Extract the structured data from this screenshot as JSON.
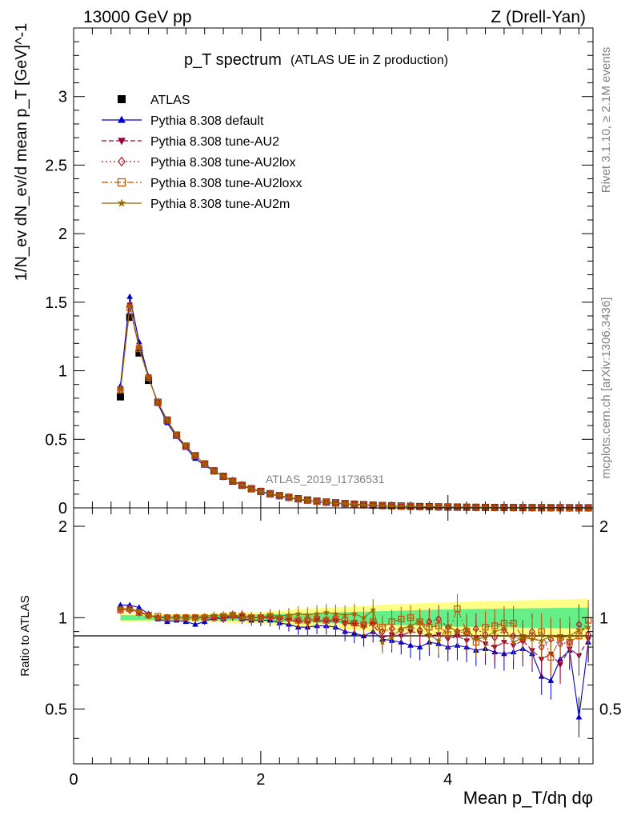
{
  "header": {
    "left": "13000 GeV pp",
    "right": "Z (Drell-Yan)"
  },
  "side_labels": {
    "rivet": "Rivet 3.1.10, ≥ 2.1M events",
    "mcplots": "mcplots.cern.ch [arXiv:1306.3436]"
  },
  "chart_data": [
    {
      "type": "line",
      "title": "p_T spectrum",
      "subtitle": "(ATLAS UE in Z production)",
      "ylabel": "1/N_ev dN_ev/d mean p_T [GeV]^-1",
      "analysis_tag": "ATLAS_2019_I1736531",
      "xlim": [
        0,
        5.55
      ],
      "ylim": [
        0,
        3.5
      ],
      "yticks": [
        "0",
        "0.5",
        "1",
        "1.5",
        "2",
        "2.5",
        "3"
      ],
      "x": [
        0.5,
        0.6,
        0.7,
        0.8,
        0.9,
        1.0,
        1.1,
        1.2,
        1.3,
        1.4,
        1.5,
        1.6,
        1.7,
        1.8,
        1.9,
        2.0,
        2.1,
        2.2,
        2.3,
        2.4,
        2.5,
        2.6,
        2.7,
        2.8,
        2.9,
        3.0,
        3.1,
        3.2,
        3.3,
        3.4,
        3.5,
        3.6,
        3.7,
        3.8,
        3.9,
        4.0,
        4.1,
        4.2,
        4.3,
        4.4,
        4.5,
        4.6,
        4.7,
        4.8,
        4.9,
        5.0,
        5.1,
        5.2,
        5.3,
        5.4,
        5.5
      ],
      "legend_position": "top-left",
      "series": [
        {
          "name": "ATLAS",
          "color": "#000000",
          "marker": "square",
          "dash": "none",
          "values": [
            0.81,
            1.39,
            1.13,
            0.93,
            0.77,
            0.64,
            0.53,
            0.45,
            0.38,
            0.32,
            0.27,
            0.23,
            0.195,
            0.165,
            0.14,
            0.12,
            0.103,
            0.089,
            0.077,
            0.066,
            0.057,
            0.049,
            0.042,
            0.036,
            0.031,
            0.027,
            0.023,
            0.02,
            0.017,
            0.015,
            0.013,
            0.011,
            0.0095,
            0.0082,
            0.0071,
            0.0061,
            0.0053,
            0.0046,
            0.004,
            0.0034,
            0.003,
            0.0026,
            0.0022,
            0.0019,
            0.0017,
            0.0014,
            0.0012,
            0.0011,
            0.0009,
            0.0008,
            0.0007
          ]
        },
        {
          "name": "Pythia 8.308 default",
          "color": "#0000cc",
          "marker": "triangle-up",
          "dash": "none",
          "values": [
            0.89,
            1.54,
            1.21,
            0.96,
            0.76,
            0.62,
            0.52,
            0.44,
            0.36,
            0.31,
            0.27,
            0.23,
            0.196,
            0.163,
            0.138,
            0.117,
            0.101,
            0.085,
            0.073,
            0.062,
            0.053,
            0.046,
            0.039,
            0.033,
            0.028,
            0.024,
            0.02,
            0.018,
            0.015,
            0.013,
            0.011,
            0.009,
            0.0078,
            0.0068,
            0.0058,
            0.0049,
            0.0043,
            0.0037,
            0.0031,
            0.0027,
            0.0023,
            0.002,
            0.0017,
            0.0015,
            0.0013,
            0.0011,
            0.0009,
            0.0008,
            0.0007,
            0.0006,
            0.0005
          ]
        },
        {
          "name": "Pythia 8.308 tune-AU2",
          "color": "#990033",
          "marker": "triangle-down",
          "dash": "6,3",
          "values": [
            0.87,
            1.48,
            1.17,
            0.95,
            0.77,
            0.64,
            0.53,
            0.45,
            0.38,
            0.32,
            0.27,
            0.23,
            0.198,
            0.166,
            0.14,
            0.12,
            0.103,
            0.088,
            0.075,
            0.064,
            0.055,
            0.048,
            0.041,
            0.035,
            0.03,
            0.026,
            0.022,
            0.019,
            0.016,
            0.014,
            0.012,
            0.01,
            0.0085,
            0.0074,
            0.0063,
            0.0054,
            0.0047,
            0.004,
            0.0035,
            0.003,
            0.0026,
            0.0022,
            0.0019,
            0.0016,
            0.0014,
            0.0012,
            0.001,
            0.0009,
            0.0008,
            0.0007,
            0.0006
          ]
        },
        {
          "name": "Pythia 8.308 tune-AU2lox",
          "color": "#b31a33",
          "marker": "diamond-open",
          "dash": "2,3",
          "values": [
            0.86,
            1.47,
            1.17,
            0.95,
            0.77,
            0.64,
            0.53,
            0.45,
            0.38,
            0.32,
            0.27,
            0.23,
            0.198,
            0.167,
            0.141,
            0.12,
            0.103,
            0.088,
            0.076,
            0.065,
            0.056,
            0.048,
            0.041,
            0.035,
            0.03,
            0.026,
            0.022,
            0.019,
            0.016,
            0.014,
            0.012,
            0.01,
            0.0087,
            0.0075,
            0.0064,
            0.0055,
            0.0047,
            0.0041,
            0.0035,
            0.003,
            0.0026,
            0.0022,
            0.0019,
            0.0016,
            0.0014,
            0.0012,
            0.001,
            0.0009,
            0.0008,
            0.0007,
            0.0006
          ]
        },
        {
          "name": "Pythia 8.308 tune-AU2loxx",
          "color": "#cc4d00",
          "marker": "square-open",
          "dash": "8,3,2,3",
          "values": [
            0.86,
            1.46,
            1.16,
            0.95,
            0.77,
            0.64,
            0.53,
            0.45,
            0.38,
            0.32,
            0.27,
            0.23,
            0.197,
            0.166,
            0.141,
            0.12,
            0.103,
            0.088,
            0.076,
            0.065,
            0.056,
            0.048,
            0.041,
            0.035,
            0.03,
            0.026,
            0.022,
            0.019,
            0.016,
            0.014,
            0.012,
            0.01,
            0.0086,
            0.0074,
            0.0064,
            0.0055,
            0.0047,
            0.004,
            0.0035,
            0.003,
            0.0026,
            0.0022,
            0.0019,
            0.0016,
            0.0014,
            0.0012,
            0.001,
            0.0009,
            0.0008,
            0.0007,
            0.0006
          ]
        },
        {
          "name": "Pythia 8.308 tune-AU2m",
          "color": "#996600",
          "marker": "star",
          "dash": "none",
          "values": [
            0.86,
            1.47,
            1.17,
            0.95,
            0.77,
            0.64,
            0.53,
            0.45,
            0.38,
            0.32,
            0.27,
            0.23,
            0.198,
            0.167,
            0.141,
            0.12,
            0.104,
            0.089,
            0.076,
            0.065,
            0.056,
            0.048,
            0.041,
            0.035,
            0.03,
            0.026,
            0.022,
            0.019,
            0.016,
            0.014,
            0.012,
            0.01,
            0.0085,
            0.0074,
            0.0063,
            0.0054,
            0.0047,
            0.004,
            0.0035,
            0.003,
            0.0026,
            0.0022,
            0.0019,
            0.0016,
            0.0014,
            0.0012,
            0.001,
            0.0009,
            0.0008,
            0.0007,
            0.0006
          ]
        }
      ]
    },
    {
      "type": "line",
      "title": "",
      "xlabel": "Mean p_T/dη dφ",
      "ylabel": "Ratio to ATLAS",
      "xlim": [
        0,
        5.55
      ],
      "ylim": [
        0.33,
        2.3
      ],
      "xticks": [
        "0",
        "2",
        "4"
      ],
      "yticks_left": [
        "0.5",
        "1",
        "2"
      ],
      "yticks_right": [
        "0.5",
        "1",
        "2"
      ],
      "reference_line": 1,
      "uncertainty_band": {
        "x": [
          0.5,
          1.0,
          1.5,
          2.0,
          2.5,
          3.0,
          3.5,
          4.0,
          4.5,
          5.0,
          5.5
        ],
        "inner_halfwidth": [
          0.02,
          0.015,
          0.02,
          0.025,
          0.035,
          0.045,
          0.055,
          0.065,
          0.07,
          0.075,
          0.08
        ],
        "outer_halfwidth": [
          0.035,
          0.025,
          0.035,
          0.045,
          0.07,
          0.09,
          0.11,
          0.125,
          0.135,
          0.145,
          0.155
        ],
        "inner_color": "#66ee88",
        "outer_color": "#ffff88"
      },
      "series": [
        {
          "name": "Pythia 8.308 default",
          "color": "#0000cc",
          "values": [
            1.1,
            1.1,
            1.08,
            1.03,
            0.99,
            0.97,
            0.98,
            0.97,
            0.95,
            0.97,
            1.0,
            0.99,
            1.01,
            0.99,
            0.98,
            0.98,
            0.98,
            0.96,
            0.95,
            0.93,
            0.93,
            0.94,
            0.94,
            0.93,
            0.9,
            0.89,
            0.87,
            0.9,
            0.85,
            0.84,
            0.83,
            0.81,
            0.8,
            0.83,
            0.82,
            0.8,
            0.81,
            0.8,
            0.78,
            0.79,
            0.77,
            0.76,
            0.77,
            0.79,
            0.76,
            0.64,
            0.62,
            0.73,
            0.78,
            0.47,
            0.83
          ]
        },
        {
          "name": "Pythia 8.308 tune-AU2",
          "color": "#990033",
          "values": [
            1.07,
            1.07,
            1.04,
            1.02,
            1.0,
            1.0,
            1.0,
            1.0,
            1.0,
            1.0,
            1.0,
            1.0,
            1.01,
            1.01,
            1.0,
            1.0,
            1.0,
            0.99,
            0.98,
            0.97,
            0.96,
            0.98,
            0.97,
            0.98,
            0.96,
            0.95,
            0.93,
            0.95,
            0.86,
            0.88,
            0.87,
            0.9,
            0.89,
            0.87,
            0.88,
            0.85,
            0.87,
            0.84,
            0.86,
            0.82,
            0.8,
            0.83,
            0.81,
            0.84,
            0.78,
            0.73,
            0.76,
            0.7,
            0.79,
            0.75,
            0.85
          ]
        },
        {
          "name": "Pythia 8.308 tune-AU2lox",
          "color": "#b31a33",
          "values": [
            1.06,
            1.06,
            1.04,
            1.02,
            1.0,
            1.0,
            1.0,
            1.0,
            1.0,
            1.0,
            1.0,
            1.0,
            1.02,
            1.02,
            1.0,
            1.0,
            1.01,
            1.0,
            0.99,
            0.98,
            0.98,
            0.99,
            0.98,
            0.98,
            0.96,
            0.96,
            0.95,
            0.96,
            0.9,
            0.92,
            0.91,
            0.93,
            0.91,
            0.97,
            0.99,
            0.93,
            0.9,
            0.89,
            0.92,
            0.88,
            0.86,
            0.91,
            0.87,
            0.84,
            0.9,
            0.8,
            0.85,
            0.82,
            0.83,
            0.95,
            0.88
          ]
        },
        {
          "name": "Pythia 8.308 tune-AU2loxx",
          "color": "#cc4d00",
          "values": [
            1.06,
            1.07,
            1.04,
            1.02,
            1.01,
            1.0,
            1.0,
            1.0,
            1.0,
            1.0,
            1.0,
            1.01,
            1.02,
            1.01,
            1.0,
            1.0,
            1.01,
            0.99,
            1.0,
            0.98,
            0.98,
            0.99,
            0.98,
            0.99,
            0.98,
            0.96,
            0.95,
            0.97,
            0.93,
            0.97,
            0.99,
            1.0,
            0.97,
            0.93,
            0.94,
            0.88,
            1.07,
            0.9,
            0.83,
            0.93,
            0.94,
            0.96,
            0.96,
            0.86,
            0.87,
            0.9,
            0.74,
            0.86,
            0.83,
            0.87,
            0.98
          ]
        },
        {
          "name": "Pythia 8.308 tune-AU2m",
          "color": "#996600",
          "values": [
            1.07,
            1.07,
            1.05,
            1.02,
            1.0,
            1.0,
            1.0,
            1.0,
            1.0,
            1.01,
            1.02,
            1.02,
            1.02,
            1.0,
            1.0,
            1.0,
            1.02,
            1.01,
            1.02,
            1.03,
            1.02,
            1.03,
            1.04,
            1.03,
            1.02,
            1.03,
            1.0,
            1.06,
            0.83,
            0.86,
            0.92,
            0.94,
            0.97,
            0.88,
            0.84,
            0.94,
            0.9,
            0.92,
            0.85,
            0.86,
            0.9,
            0.92,
            0.83,
            0.86,
            0.85,
            0.84,
            0.87,
            0.86,
            0.87,
            0.91,
            0.93
          ]
        }
      ]
    }
  ]
}
